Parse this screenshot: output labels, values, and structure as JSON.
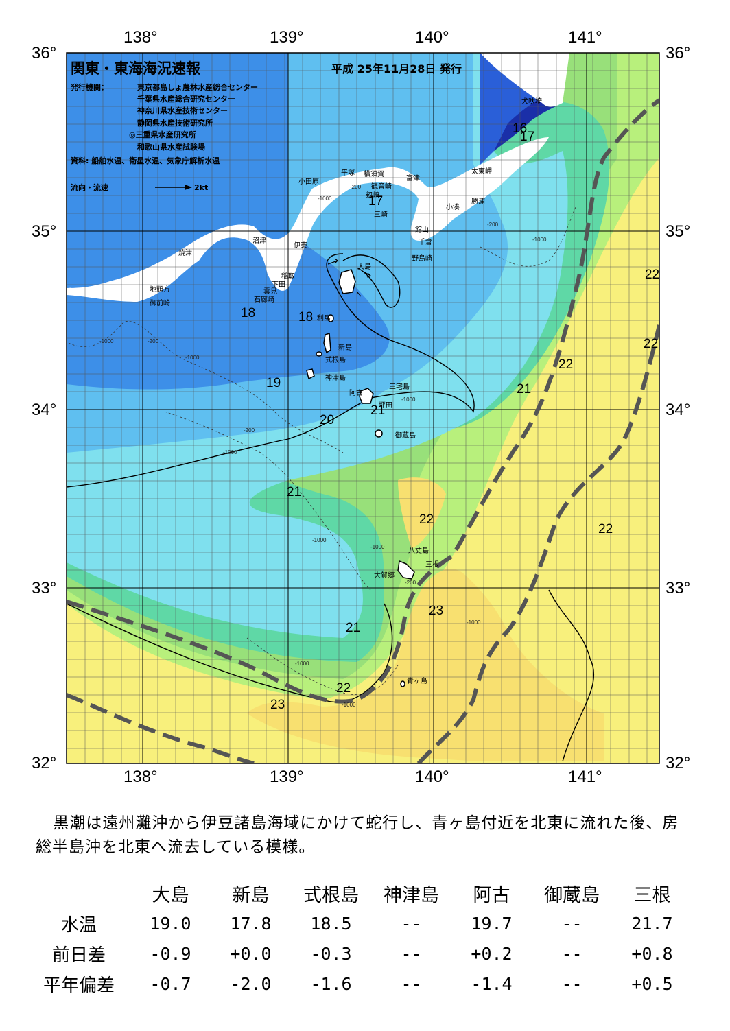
{
  "header": {
    "title": "関東・東海海況速報",
    "date": "平成 25年11月28日 発行",
    "issuer_label": "発行機関：",
    "issuers": [
      "東京都島しょ農林水産総合センター",
      "千葉県水産総合研究センター",
      "神奈川県水産技術センター",
      "静岡県水産技術研究所",
      "◎三重県水産研究所",
      "和歌山県水産試験場"
    ],
    "source": "資料: 船舶水温、衛星水温、気象庁解析水温",
    "flow_legend": "流向・流速",
    "flow_scale": "2kt"
  },
  "axes": {
    "longitudes": [
      "138°",
      "139°",
      "140°",
      "141°"
    ],
    "latitudes": [
      "36°",
      "35°",
      "34°",
      "33°",
      "32°"
    ]
  },
  "places": [
    {
      "name": "犬吠埼"
    },
    {
      "name": "太東岬"
    },
    {
      "name": "勝浦"
    },
    {
      "name": "小湊"
    },
    {
      "name": "館山"
    },
    {
      "name": "千倉"
    },
    {
      "name": "野島崎"
    },
    {
      "name": "富津"
    },
    {
      "name": "横須賀"
    },
    {
      "name": "観音崎"
    },
    {
      "name": "剱崎"
    },
    {
      "name": "三崎"
    },
    {
      "name": "平塚"
    },
    {
      "name": "小田原"
    },
    {
      "name": "沼津"
    },
    {
      "name": "伊東"
    },
    {
      "name": "焼津"
    },
    {
      "name": "稲取"
    },
    {
      "name": "下田"
    },
    {
      "name": "雲見"
    },
    {
      "name": "石廊崎"
    },
    {
      "name": "地頭方"
    },
    {
      "name": "御前崎"
    },
    {
      "name": "大島"
    },
    {
      "name": "利島"
    },
    {
      "name": "新島"
    },
    {
      "name": "式根島"
    },
    {
      "name": "神津島"
    },
    {
      "name": "三宅島"
    },
    {
      "name": "阿古"
    },
    {
      "name": "坪田"
    },
    {
      "name": "御蔵島"
    },
    {
      "name": "八丈島"
    },
    {
      "name": "三根"
    },
    {
      "name": "大賀郷"
    },
    {
      "name": "青ヶ島"
    }
  ],
  "isotherm_labels": [
    {
      "text": "16"
    },
    {
      "text": "17"
    },
    {
      "text": "17"
    },
    {
      "text": "18"
    },
    {
      "text": "18"
    },
    {
      "text": "19"
    },
    {
      "text": "20"
    },
    {
      "text": "21"
    },
    {
      "text": "21"
    },
    {
      "text": "21"
    },
    {
      "text": "21"
    },
    {
      "text": "22"
    },
    {
      "text": "22"
    },
    {
      "text": "22"
    },
    {
      "text": "22"
    },
    {
      "text": "22"
    },
    {
      "text": "22"
    },
    {
      "text": "23"
    },
    {
      "text": "23"
    }
  ],
  "depth_labels": [
    "-200",
    "-1000"
  ],
  "colors": {
    "t16": "#1a2fa8",
    "t17": "#2a5fd8",
    "t18": "#3d8fe8",
    "t19": "#5fbff0",
    "t20": "#7fe0ee",
    "t21": "#5fd8a6",
    "t215": "#98e07a",
    "t22": "#b8f07c",
    "t23": "#f8f07c",
    "t235": "#f8e070",
    "kuroshio_axis": "#555555"
  },
  "summary": "黒潮は遠州灘沖から伊豆諸島海域にかけて蛇行し、青ヶ島付近を北東に流れた後、房総半島沖を北東へ流去している模様。",
  "table": {
    "columns": [
      "大島",
      "新島",
      "式根島",
      "神津島",
      "阿古",
      "御蔵島",
      "三根"
    ],
    "rows": [
      {
        "label": "水温",
        "values": [
          "19.0",
          "17.8",
          "18.5",
          "--",
          "19.7",
          "--",
          "21.7"
        ]
      },
      {
        "label": "前日差",
        "values": [
          "-0.9",
          "+0.0",
          "-0.3",
          "--",
          "+0.2",
          "--",
          "+0.8"
        ]
      },
      {
        "label": "平年偏差",
        "values": [
          "-0.7",
          "-2.0",
          "-1.6",
          "--",
          "-1.4",
          "--",
          "+0.5"
        ]
      }
    ]
  }
}
